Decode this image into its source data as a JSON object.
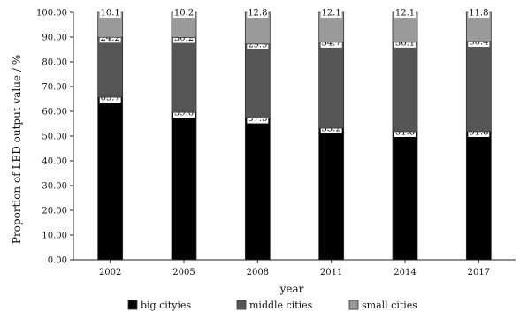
{
  "chart_data": {
    "type": "bar",
    "stacked": true,
    "categories": [
      "2002",
      "2005",
      "2008",
      "2011",
      "2014",
      "2017"
    ],
    "series": [
      {
        "name": "big cityies",
        "values": [
          65.7,
          59.6,
          57.3,
          53.2,
          51.8,
          51.8
        ],
        "color": "#000000"
      },
      {
        "name": "middle cities",
        "values": [
          24.2,
          30.2,
          29.9,
          34.7,
          36.1,
          36.4
        ],
        "color": "#555555"
      },
      {
        "name": "small cities",
        "values": [
          10.1,
          10.2,
          12.8,
          12.1,
          12.1,
          11.8
        ],
        "color": "#9a9a9a"
      }
    ],
    "xlabel": "year",
    "ylabel": "Proportion of LED output value / %",
    "ylim": [
      0,
      100
    ],
    "yticks": [
      "0.00",
      "10.00",
      "20.00",
      "30.00",
      "40.00",
      "50.00",
      "60.00",
      "70.00",
      "80.00",
      "90.00",
      "100.00"
    ],
    "legend_position": "bottom",
    "grid": false
  }
}
